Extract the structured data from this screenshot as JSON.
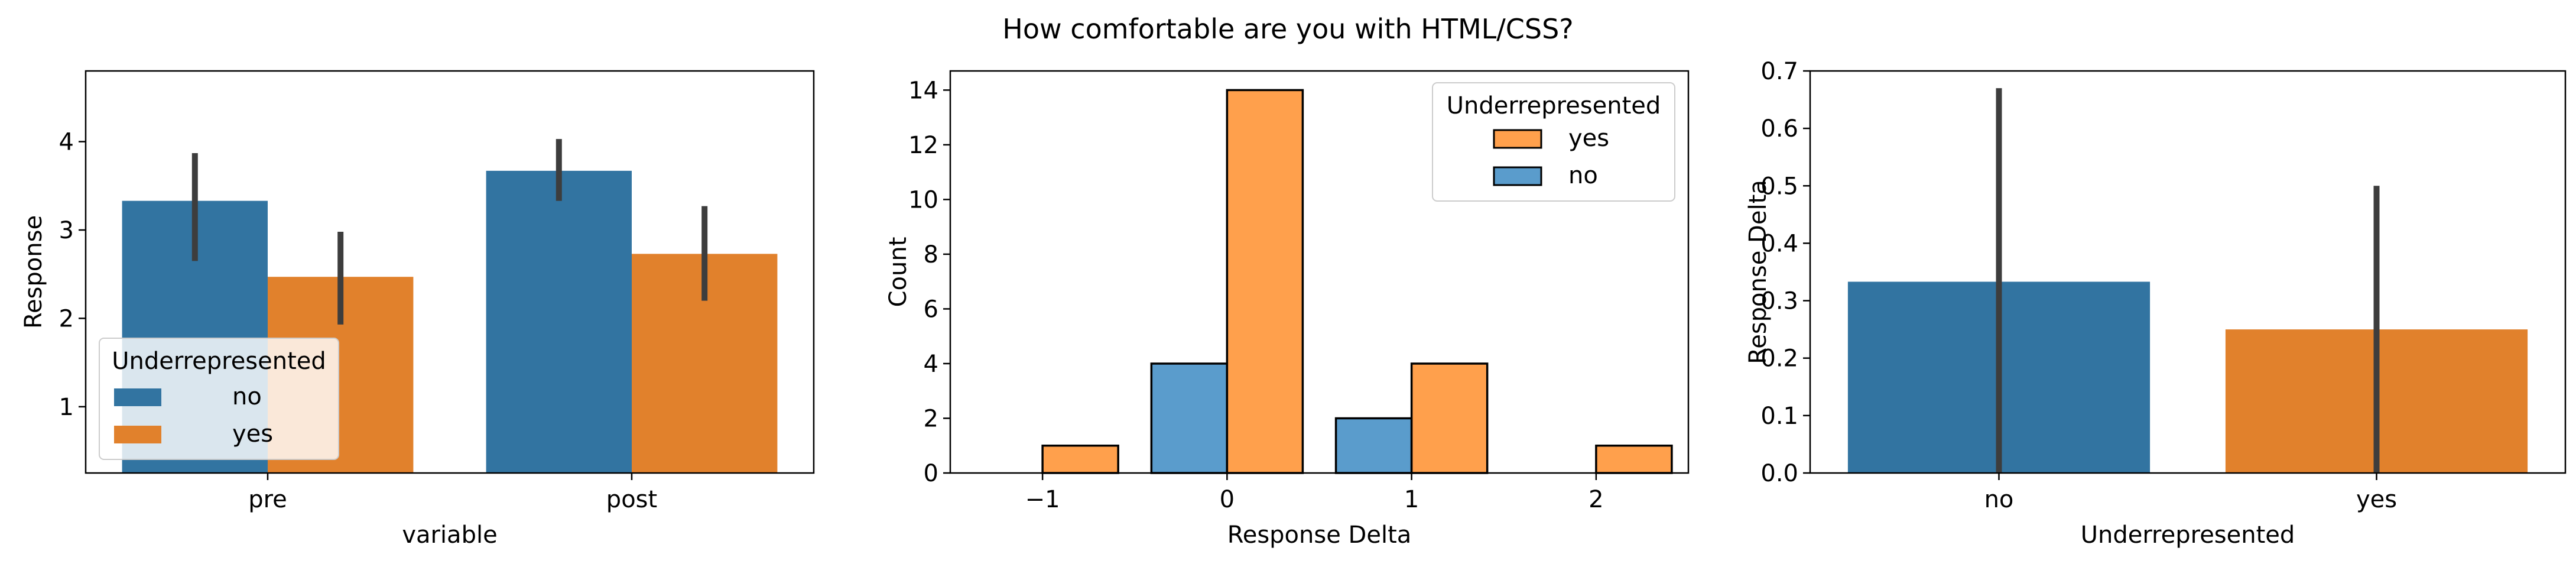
{
  "figure_title": "How comfortable are you with HTML/CSS?",
  "colors": {
    "no": "#3274a1",
    "yes": "#e1812c",
    "no_hist": "#5a9ccc",
    "yes_hist": "#ffa04c",
    "errorbar": "#3d3d3d"
  },
  "chart_data": [
    {
      "type": "bar",
      "xlabel": "variable",
      "ylabel": "Response",
      "categories": [
        "pre",
        "post"
      ],
      "ylim": [
        0.25,
        4.8
      ],
      "yticks": [
        1,
        2,
        3,
        4
      ],
      "series": [
        {
          "name": "no",
          "values": [
            3.33,
            3.67
          ],
          "ci_low": [
            2.65,
            3.33
          ],
          "ci_high": [
            3.87,
            4.03
          ]
        },
        {
          "name": "yes",
          "values": [
            2.47,
            2.73
          ],
          "ci_low": [
            1.93,
            2.2
          ],
          "ci_high": [
            2.98,
            3.27
          ]
        }
      ],
      "legend": {
        "title": "Underrepresented",
        "placement": "lower-left",
        "entries": [
          "no",
          "yes"
        ]
      }
    },
    {
      "type": "bar",
      "xlabel": "Response Delta",
      "ylabel": "Count",
      "categories": [
        -1,
        0,
        1,
        2
      ],
      "xtick_labels": [
        "−1",
        "0",
        "1",
        "2"
      ],
      "ylim": [
        0,
        14.7
      ],
      "yticks": [
        0,
        2,
        4,
        6,
        8,
        10,
        12,
        14
      ],
      "series": [
        {
          "name": "no",
          "values": [
            0,
            4,
            2,
            0
          ]
        },
        {
          "name": "yes",
          "values": [
            1,
            14,
            4,
            1
          ]
        }
      ],
      "legend": {
        "title": "Underrepresented",
        "placement": "top-right",
        "entries": [
          "yes",
          "no"
        ]
      }
    },
    {
      "type": "bar",
      "xlabel": "Underrepresented",
      "ylabel": "Response Delta",
      "categories": [
        "no",
        "yes"
      ],
      "values": [
        0.333,
        0.25
      ],
      "ci_low": [
        0.0,
        0.0
      ],
      "ci_high": [
        0.67,
        0.5
      ],
      "ylim": [
        0,
        0.7
      ],
      "yticks": [
        "0.0",
        "0.1",
        "0.2",
        "0.3",
        "0.4",
        "0.5",
        "0.6",
        "0.7"
      ]
    }
  ]
}
